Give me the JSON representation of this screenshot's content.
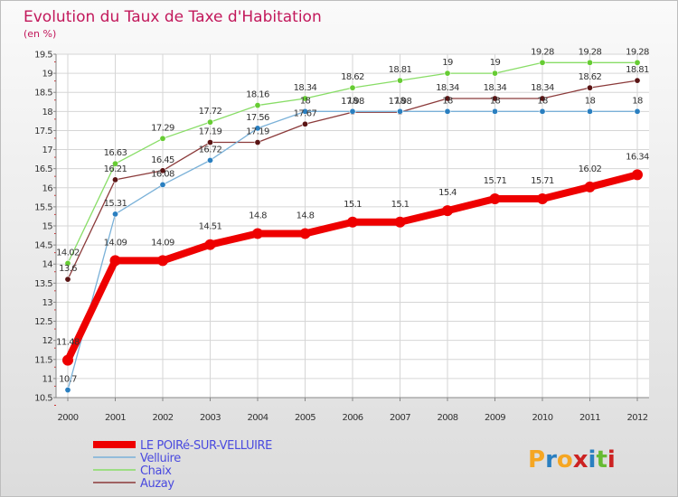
{
  "chart_data": {
    "type": "line",
    "title": "Evolution du Taux de Taxe d'Habitation",
    "subtitle": "(en %)",
    "x": [
      "2000",
      "2001",
      "2002",
      "2003",
      "2004",
      "2005",
      "2006",
      "2007",
      "2008",
      "2009",
      "2010",
      "2011",
      "2012"
    ],
    "ylim": [
      10.5,
      19.5
    ],
    "ytick_labels": [
      "10.5",
      "11",
      "11.5",
      "12",
      "12.5",
      "13",
      "13.5",
      "14",
      "14.5",
      "15",
      "15.5",
      "16",
      "16.5",
      "17",
      "17.5",
      "18",
      "18.5",
      "19",
      "19.5"
    ],
    "grid": true,
    "legend_position": "bottom-left",
    "series": [
      {
        "name": "LE POIRé-SUR-VELLUIRE",
        "color": "#ee0000",
        "point_color": "#ee0000",
        "width": "thick",
        "values": [
          11.48,
          14.09,
          14.09,
          14.51,
          14.8,
          14.8,
          15.1,
          15.1,
          15.4,
          15.71,
          15.71,
          16.02,
          16.34
        ],
        "labels": [
          "11.48",
          "14.09",
          "14.09",
          "14.51",
          "14.8",
          "14.8",
          "15.1",
          "15.1",
          "15.4",
          "15.71",
          "15.71",
          "16.02",
          "16.34"
        ]
      },
      {
        "name": "Velluire",
        "color": "#7ab1d8",
        "point_color": "#2a7fc0",
        "width": "thin",
        "values": [
          10.7,
          15.31,
          16.08,
          16.72,
          17.56,
          18,
          18,
          18,
          18,
          18,
          18,
          18,
          18
        ],
        "labels": [
          "10.7",
          "15.31",
          "16.08",
          "16.72",
          "17.56",
          "18",
          "18",
          "18",
          "18",
          "18",
          "18",
          "18",
          "18"
        ]
      },
      {
        "name": "Chaix",
        "color": "#88dd66",
        "point_color": "#66cc33",
        "width": "thin",
        "values": [
          14.02,
          16.63,
          17.29,
          17.72,
          18.16,
          18.34,
          18.62,
          18.81,
          19,
          19,
          19.28,
          19.28,
          19.28
        ],
        "labels": [
          "14.02",
          "16.63",
          "17.29",
          "17.72",
          "18.16",
          "18.34",
          "18.62",
          "18.81",
          "19",
          "19",
          "19.28",
          "19.28",
          "19.28"
        ]
      },
      {
        "name": "Auzay",
        "color": "#8b3a3a",
        "point_color": "#5a1414",
        "width": "thin",
        "values": [
          13.6,
          16.21,
          16.45,
          17.19,
          17.19,
          17.67,
          17.98,
          17.98,
          18.34,
          18.34,
          18.34,
          18.62,
          18.81
        ],
        "labels": [
          "13.6",
          "16.21",
          "16.45",
          "17.19",
          "17.19",
          "17.67",
          "17.98",
          "17.98",
          "18.34",
          "18.34",
          "18.34",
          "18.62",
          "18.81"
        ]
      }
    ]
  },
  "branding": {
    "text": "Proxiti",
    "letters": [
      "P",
      "r",
      "o",
      "x",
      "i",
      "t",
      "i"
    ],
    "colors": [
      "#f5a623",
      "#2a7fc0",
      "#f5a623",
      "#cc2222",
      "#2a7fc0",
      "#66bb33",
      "#cc2222"
    ]
  }
}
